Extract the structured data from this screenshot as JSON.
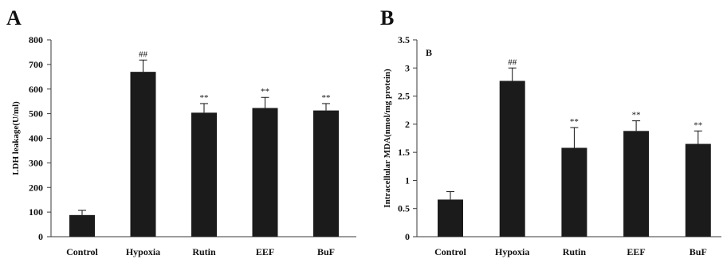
{
  "colors": {
    "bar": "#1b1b1b",
    "axis": "#3a3a3a",
    "text": "#111111"
  },
  "chart_data": [
    {
      "type": "bar",
      "panel_label": "A",
      "categories": [
        "Control",
        "Hypoxia",
        "Rutin",
        "EEF",
        "BuF"
      ],
      "values": [
        88,
        670,
        504,
        523,
        513
      ],
      "errors": [
        19,
        48,
        37,
        43,
        28
      ],
      "annotations": [
        null,
        "##",
        "**",
        "**",
        "**"
      ],
      "ylabel": "LDH leakage(U/ml)",
      "ylim": [
        0,
        800
      ],
      "yticks": [
        0,
        100,
        200,
        300,
        400,
        500,
        600,
        700,
        800
      ],
      "grid": false,
      "legend": false
    },
    {
      "type": "bar",
      "panel_label": "B",
      "inner_label": "B",
      "categories": [
        "Control",
        "Hypoxia",
        "Rutin",
        "EEF",
        "BuF"
      ],
      "values": [
        0.66,
        2.77,
        1.58,
        1.88,
        1.65
      ],
      "errors": [
        0.14,
        0.23,
        0.36,
        0.18,
        0.23
      ],
      "annotations": [
        null,
        "##",
        "**",
        "**",
        "**"
      ],
      "ylabel": "Intracellular MDA(nmol/mg protein)",
      "ylim": [
        0,
        3.5
      ],
      "yticks": [
        0,
        0.5,
        1,
        1.5,
        2,
        2.5,
        3,
        3.5
      ],
      "grid": false,
      "legend": false
    }
  ]
}
